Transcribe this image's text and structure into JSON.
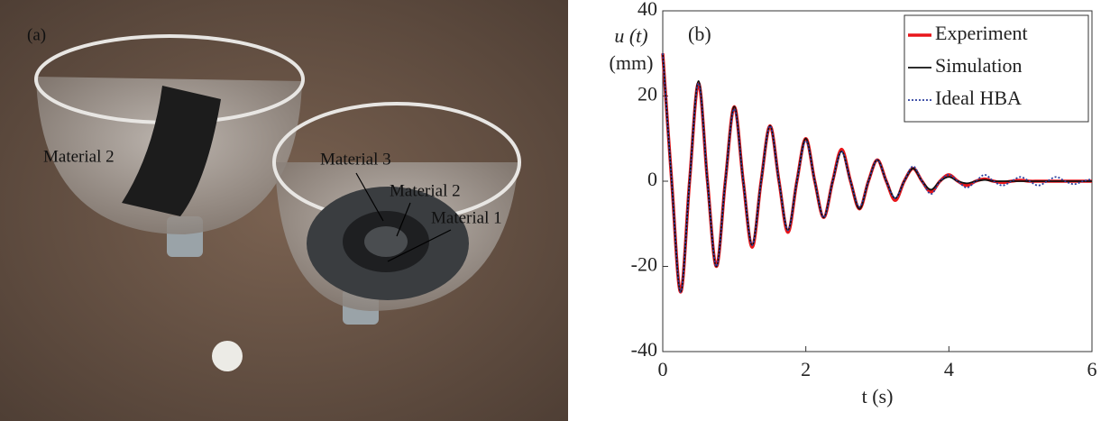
{
  "photo": {
    "panel_label": "(a)",
    "labels": [
      "Material 2",
      "Material 3",
      "Material 2",
      "Material 1"
    ]
  },
  "chart_data": {
    "type": "line",
    "panel_label": "(b)",
    "ylabel": [
      "u (t)",
      "(mm)"
    ],
    "xlabel": "t (s)",
    "x": [
      0,
      0.125,
      0.25,
      0.375,
      0.5,
      0.625,
      0.75,
      0.875,
      1,
      1.125,
      1.25,
      1.375,
      1.5,
      1.625,
      1.75,
      1.875,
      2,
      2.125,
      2.25,
      2.375,
      2.5,
      2.625,
      2.75,
      2.875,
      3,
      3.125,
      3.25,
      3.375,
      3.5,
      3.625,
      3.75,
      3.875,
      4,
      4.125,
      4.25,
      4.375,
      4.5,
      4.625,
      4.75,
      4.875,
      5,
      5.125,
      5.25,
      5.375,
      5.5,
      5.625,
      5.75,
      5.875,
      6
    ],
    "series": [
      {
        "name": "Experiment",
        "color": "#e8161b",
        "width": 3.5,
        "dash": "none",
        "values": [
          30,
          0,
          -26,
          0,
          23,
          0,
          -20,
          0,
          17.5,
          0,
          -15.5,
          0,
          13,
          0,
          -12,
          0,
          10,
          0,
          -8.5,
          0,
          7.5,
          0,
          -6.5,
          0,
          5,
          0,
          -4.5,
          0,
          3,
          0,
          -2.5,
          0,
          1.5,
          0,
          -1,
          0,
          0.5,
          0,
          -0.3,
          0,
          0.2,
          0,
          0,
          0,
          0,
          0,
          0,
          0,
          0
        ]
      },
      {
        "name": "Simulation",
        "color": "#111111",
        "width": 1.8,
        "dash": "none",
        "values": [
          30,
          0,
          -26,
          0,
          23.5,
          0,
          -20,
          0,
          17.5,
          0,
          -15,
          0,
          13,
          0,
          -11.5,
          0,
          10,
          0,
          -8.5,
          0,
          7,
          0,
          -6.5,
          0,
          5,
          0,
          -4,
          0,
          3,
          0,
          -2,
          0,
          1,
          0,
          -0.5,
          0,
          0.3,
          0,
          0,
          0,
          0,
          0,
          0,
          0,
          0,
          0,
          0,
          0,
          0
        ]
      },
      {
        "name": "Ideal HBA",
        "color": "#2b3f9e",
        "width": 1.8,
        "dash": "2 2",
        "values": [
          30,
          0,
          -26,
          0,
          23,
          0,
          -20,
          0,
          17,
          0,
          -15,
          0,
          13,
          0,
          -11.5,
          0,
          9.5,
          0,
          -8.5,
          0,
          7,
          0,
          -6,
          0,
          5,
          0,
          -4,
          0,
          3.5,
          0,
          -3,
          0,
          1.5,
          0,
          -1.5,
          0,
          1.5,
          0,
          -1,
          0,
          1,
          0,
          -1,
          0,
          1,
          0,
          -0.7,
          0,
          0.5
        ]
      }
    ],
    "xlim": [
      0,
      6
    ],
    "xticks": [
      0,
      2,
      4,
      6
    ],
    "ylim": [
      -40,
      40
    ],
    "yticks": [
      -40,
      -20,
      0,
      20,
      40
    ],
    "grid": false,
    "legend": "upper right"
  }
}
